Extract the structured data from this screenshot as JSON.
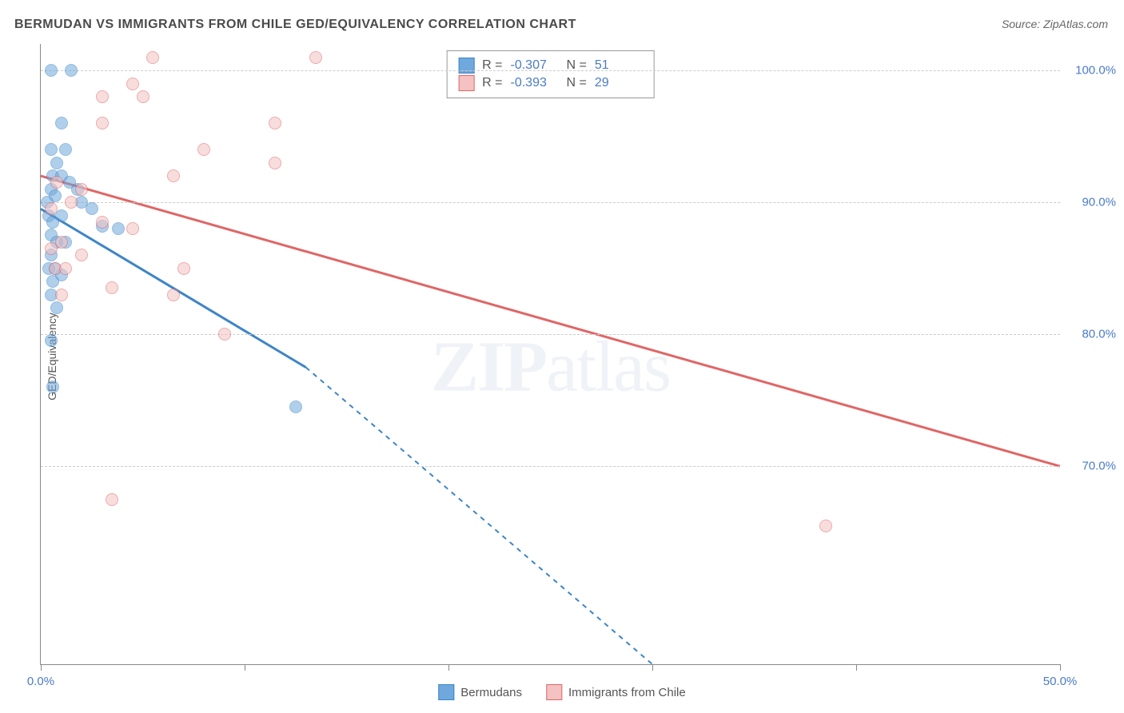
{
  "title": "BERMUDAN VS IMMIGRANTS FROM CHILE GED/EQUIVALENCY CORRELATION CHART",
  "source": "Source: ZipAtlas.com",
  "ylabel": "GED/Equivalency",
  "watermark_a": "ZIP",
  "watermark_b": "atlas",
  "chart": {
    "type": "scatter",
    "background_color": "#ffffff",
    "grid_color": "#cccccc",
    "axis_color": "#888888",
    "label_color": "#4b7bc8",
    "xlim": [
      0,
      50
    ],
    "ylim": [
      55,
      102
    ],
    "xticks": [
      0,
      10,
      20,
      30,
      40,
      50
    ],
    "xtick_labels": {
      "0": "0.0%",
      "50": "50.0%"
    },
    "yticks": [
      70,
      80,
      90,
      100
    ],
    "ytick_labels": {
      "70": "70.0%",
      "80": "80.0%",
      "90": "90.0%",
      "100": "100.0%"
    },
    "point_size": 16,
    "point_opacity": 0.55,
    "line_width_main": 3,
    "line_width_dash": 2,
    "series": [
      {
        "name": "Bermudans",
        "color": "#6fa8dc",
        "stroke": "#3d85c6",
        "R": "-0.307",
        "N": "51",
        "trend": {
          "solid": {
            "x1": 0,
            "y1": 89.5,
            "x2": 13,
            "y2": 77.5
          },
          "dashed": {
            "x1": 13,
            "y1": 77.5,
            "x2": 30,
            "y2": 55
          }
        },
        "points": [
          [
            0.5,
            100
          ],
          [
            1.5,
            100
          ],
          [
            1.0,
            96
          ],
          [
            0.5,
            94
          ],
          [
            1.2,
            94
          ],
          [
            0.8,
            93
          ],
          [
            0.6,
            92
          ],
          [
            1.0,
            92
          ],
          [
            1.4,
            91.5
          ],
          [
            1.8,
            91
          ],
          [
            0.5,
            91
          ],
          [
            0.7,
            90.5
          ],
          [
            0.3,
            90
          ],
          [
            2.0,
            90
          ],
          [
            2.5,
            89.5
          ],
          [
            0.4,
            89
          ],
          [
            1.0,
            89
          ],
          [
            0.6,
            88.5
          ],
          [
            3.0,
            88.2
          ],
          [
            3.8,
            88
          ],
          [
            0.5,
            87.5
          ],
          [
            0.8,
            87
          ],
          [
            1.2,
            87
          ],
          [
            0.5,
            86
          ],
          [
            0.7,
            85
          ],
          [
            0.4,
            85
          ],
          [
            1.0,
            84.5
          ],
          [
            0.6,
            84
          ],
          [
            0.5,
            83
          ],
          [
            0.8,
            82
          ],
          [
            0.5,
            79.5
          ],
          [
            12.5,
            74.5
          ],
          [
            0.6,
            76
          ]
        ]
      },
      {
        "name": "Immigrants from Chile",
        "color": "#f4c2c2",
        "stroke": "#e06666",
        "R": "-0.393",
        "N": "29",
        "trend": {
          "solid": {
            "x1": 0,
            "y1": 92,
            "x2": 50,
            "y2": 70
          }
        },
        "points": [
          [
            5.5,
            101
          ],
          [
            13.5,
            101
          ],
          [
            4.5,
            99
          ],
          [
            3.0,
            98
          ],
          [
            5.0,
            98
          ],
          [
            11.5,
            96
          ],
          [
            3.0,
            96
          ],
          [
            8.0,
            94
          ],
          [
            11.5,
            93
          ],
          [
            6.5,
            92
          ],
          [
            0.8,
            91.5
          ],
          [
            2.0,
            91
          ],
          [
            1.5,
            90
          ],
          [
            0.5,
            89.5
          ],
          [
            3.0,
            88.5
          ],
          [
            4.5,
            88
          ],
          [
            1.0,
            87
          ],
          [
            0.5,
            86.5
          ],
          [
            2.0,
            86
          ],
          [
            0.7,
            85
          ],
          [
            1.2,
            85
          ],
          [
            3.5,
            83.5
          ],
          [
            7.0,
            85
          ],
          [
            9.0,
            80
          ],
          [
            3.5,
            67.5
          ],
          [
            38.5,
            65.5
          ],
          [
            6.5,
            83
          ],
          [
            1.0,
            83
          ]
        ]
      }
    ]
  },
  "legend": {
    "r_label": "R =",
    "n_label": "N ="
  }
}
